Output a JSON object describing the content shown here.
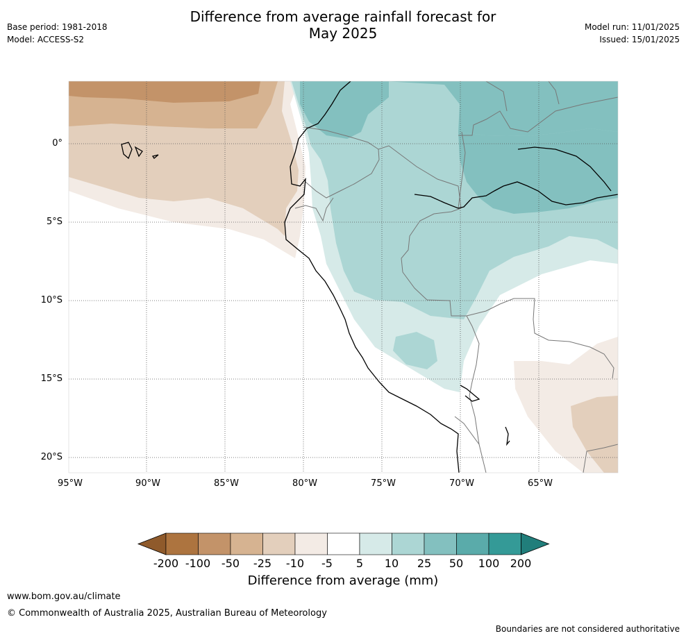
{
  "header": {
    "title_line1": "Difference from average rainfall forecast for",
    "title_line2": "May 2025",
    "base_period": "Base period: 1981-2018",
    "model": "Model: ACCESS-S2",
    "model_run": "Model run: 11/01/2025",
    "issued": "Issued: 15/01/2025"
  },
  "map": {
    "latitude_labels": [
      "0°",
      "5°S",
      "10°S",
      "15°S",
      "20°S"
    ],
    "longitude_labels": [
      "95°W",
      "90°W",
      "85°W",
      "80°W",
      "75°W",
      "70°W",
      "65°W"
    ],
    "colors": {
      "dry_200": "#8f5a2b",
      "dry_100": "#ad743f",
      "dry_50": "#c39369",
      "dry_25": "#d6b391",
      "dry_10": "#e3cfbc",
      "dry_5": "#f3ebe5",
      "neutral": "#ffffff",
      "wet_5": "#d6eae8",
      "wet_10": "#acd6d4",
      "wet_25": "#83c0bf",
      "wet_50": "#5aabaa",
      "wet_100": "#349a97",
      "wet_200": "#217e7b",
      "coastline": "#000000",
      "border": "#777777"
    }
  },
  "legend": {
    "title": "Difference from average (mm)",
    "ticks": [
      "-200",
      "-100",
      "-50",
      "-25",
      "-10",
      "-5",
      "5",
      "10",
      "25",
      "50",
      "100",
      "200"
    ],
    "bins": [
      "#ad743f",
      "#c39369",
      "#d6b391",
      "#e3cfbc",
      "#f3ebe5",
      "#ffffff",
      "#d6eae8",
      "#acd6d4",
      "#83c0bf",
      "#5aabaa",
      "#349a97"
    ],
    "low_extend_color": "#8f5a2b",
    "high_extend_color": "#217e7b"
  },
  "footer": {
    "website": "www.bom.gov.au/climate",
    "copyright": "© Commonwealth of Australia 2025, Australian Bureau of Meteorology",
    "disclaimer": "Boundaries are not considered authoritative"
  }
}
